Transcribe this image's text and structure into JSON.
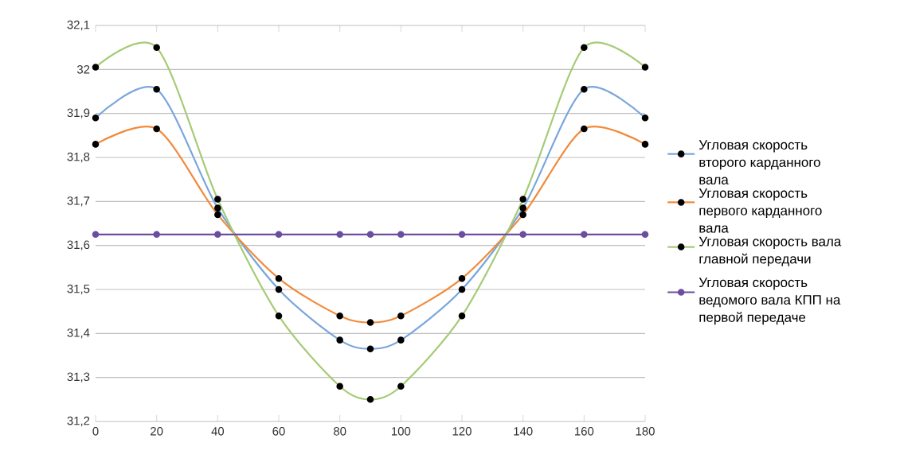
{
  "chart_data": {
    "type": "line",
    "x": [
      0,
      20,
      40,
      60,
      80,
      90,
      100,
      120,
      140,
      160,
      180
    ],
    "series": [
      {
        "name": "Угловая скорость второго карданного вала",
        "color": "#7aa6dc",
        "values": [
          31.89,
          31.955,
          31.685,
          31.5,
          31.385,
          31.365,
          31.385,
          31.5,
          31.685,
          31.955,
          31.89
        ]
      },
      {
        "name": "Угловая скорость первого карданного вала",
        "color": "#f28a3a",
        "values": [
          31.83,
          31.865,
          31.67,
          31.525,
          31.44,
          31.425,
          31.44,
          31.525,
          31.67,
          31.865,
          31.83
        ]
      },
      {
        "name": "Угловая скорость вала главной передачи",
        "color": "#a6cb76",
        "values": [
          32.005,
          32.05,
          31.705,
          31.44,
          31.28,
          31.25,
          31.28,
          31.44,
          31.705,
          32.05,
          32.005
        ]
      },
      {
        "name": "Угловая скорость ведомого вала КПП на первой передаче",
        "color": "#6b4e9f",
        "values": [
          31.625,
          31.625,
          31.625,
          31.625,
          31.625,
          31.625,
          31.625,
          31.625,
          31.625,
          31.625,
          31.625
        ]
      }
    ],
    "xlim": [
      0,
      180
    ],
    "xticks": [
      0,
      20,
      40,
      60,
      80,
      100,
      120,
      140,
      160,
      180
    ],
    "ylim": [
      31.2,
      32.1
    ],
    "yticks": [
      {
        "value": 31.2,
        "label": "31,2"
      },
      {
        "value": 31.3,
        "label": "31,3"
      },
      {
        "value": 31.4,
        "label": "31,4"
      },
      {
        "value": 31.5,
        "label": "31,5"
      },
      {
        "value": 31.6,
        "label": "31,6"
      },
      {
        "value": 31.7,
        "label": "31,7"
      },
      {
        "value": 31.8,
        "label": "31,8"
      },
      {
        "value": 31.9,
        "label": "31,9"
      },
      {
        "value": 32,
        "label": "32"
      },
      {
        "value": 32.1,
        "label": "32,1"
      }
    ],
    "grid": "y",
    "legend": "right",
    "marker": "circle",
    "line_style": "solid"
  }
}
